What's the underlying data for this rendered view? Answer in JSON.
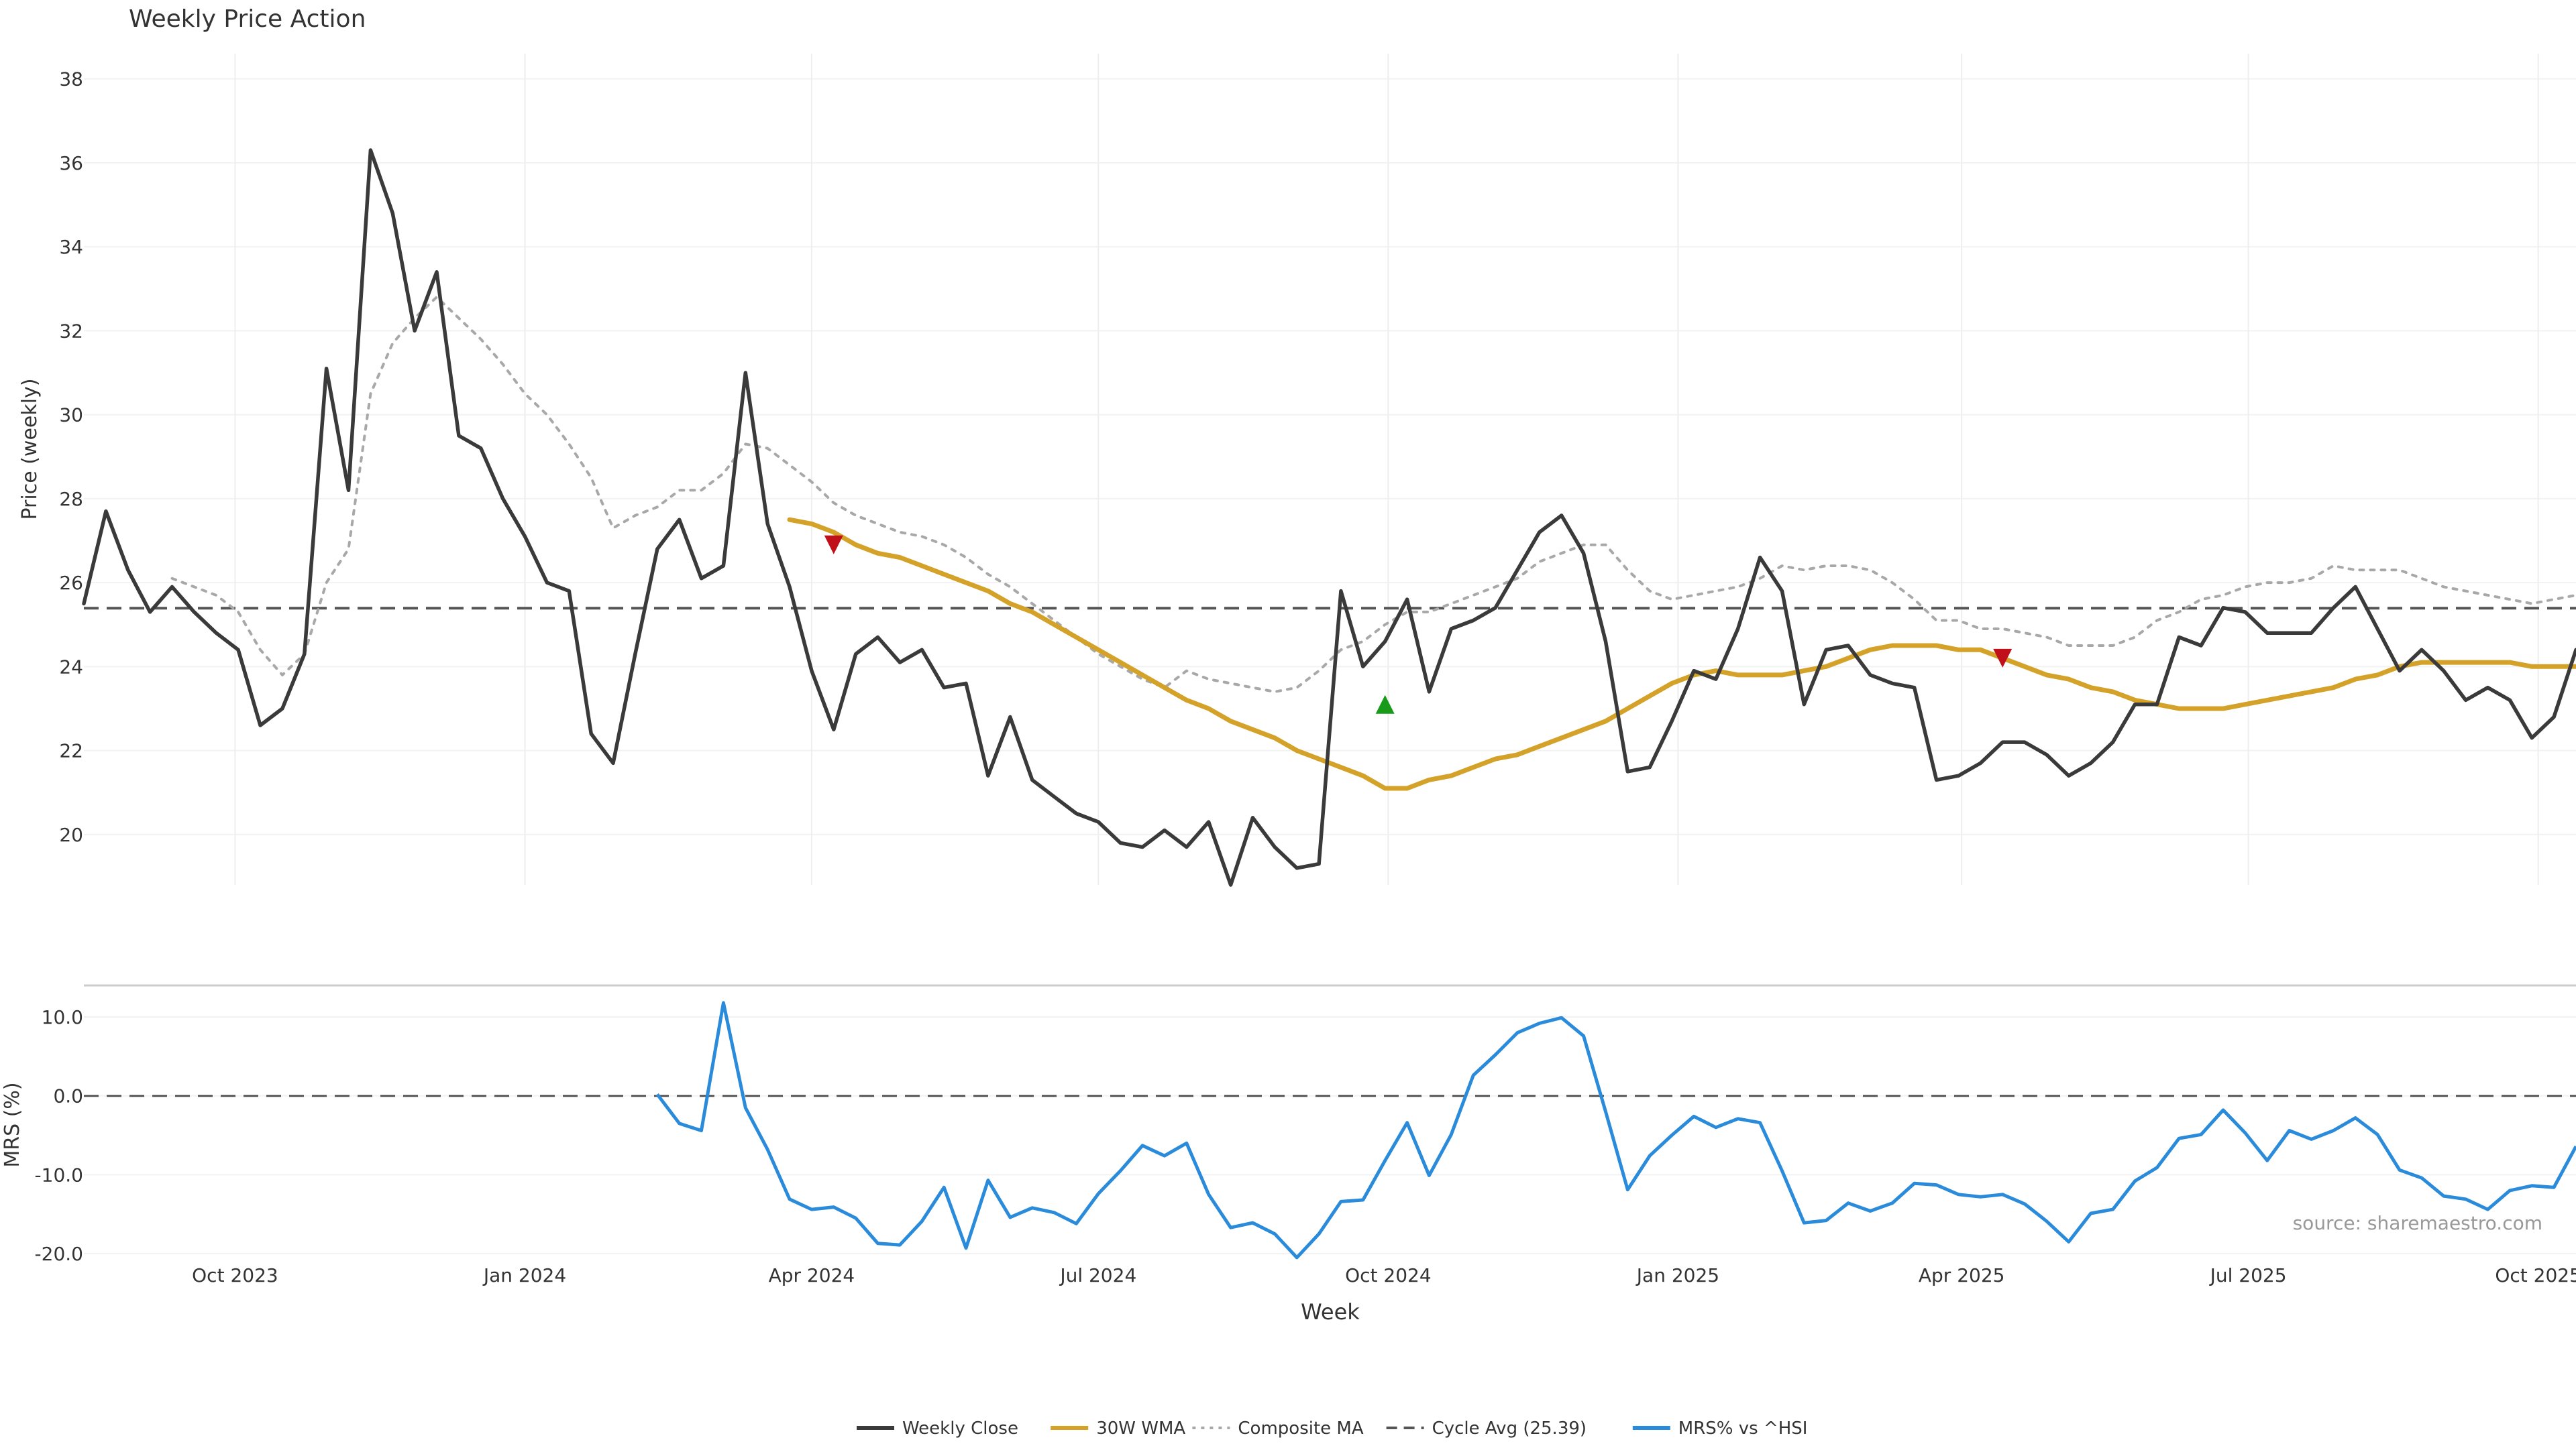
{
  "chart_data": [
    {
      "type": "line",
      "panel": "price",
      "title": "Weekly Price Action",
      "ylabel": "Price (weekly)",
      "ylim": [
        18.8,
        38.6
      ],
      "yticks": [
        20,
        22,
        24,
        26,
        28,
        30,
        32,
        34,
        36,
        38
      ],
      "x_start": "2023-08-14",
      "x_step_days": 7,
      "series": [
        {
          "name": "Weekly Close",
          "color": "#3a3a3a",
          "values": [
            25.5,
            27.7,
            26.3,
            25.3,
            25.9,
            25.3,
            24.8,
            24.4,
            22.6,
            23.0,
            24.3,
            31.1,
            28.2,
            36.3,
            34.8,
            32.0,
            33.4,
            29.5,
            29.2,
            28.0,
            27.1,
            26.0,
            25.8,
            22.4,
            21.7,
            24.3,
            26.8,
            27.5,
            26.1,
            26.4,
            31.0,
            27.4,
            25.9,
            23.9,
            22.5,
            24.3,
            24.7,
            24.1,
            24.4,
            23.5,
            23.6,
            21.4,
            22.8,
            21.3,
            20.9,
            20.5,
            20.3,
            19.8,
            19.7,
            20.1,
            19.7,
            20.3,
            18.8,
            20.4,
            19.7,
            19.2,
            19.3,
            25.8,
            24.0,
            24.6,
            25.6,
            23.4,
            24.9,
            25.1,
            25.4,
            26.3,
            27.2,
            27.6,
            26.7,
            24.6,
            21.5,
            21.6,
            22.7,
            23.9,
            23.7,
            24.9,
            26.6,
            25.8,
            23.1,
            24.4,
            24.5,
            23.8,
            23.6,
            23.5,
            21.3,
            21.4,
            21.7,
            22.2,
            22.2,
            21.9,
            21.4,
            21.7,
            22.2,
            23.1,
            23.1,
            24.7,
            24.5,
            25.4,
            25.3,
            24.8,
            24.8,
            24.8,
            25.4,
            25.9,
            24.9,
            23.9,
            24.4,
            23.9,
            23.2,
            23.5,
            23.2,
            22.3,
            22.8,
            24.4
          ]
        },
        {
          "name": "30W WMA",
          "color": "#d4a228",
          "values": [
            null,
            null,
            null,
            null,
            null,
            null,
            null,
            null,
            null,
            null,
            null,
            null,
            null,
            null,
            null,
            null,
            null,
            null,
            null,
            null,
            null,
            null,
            null,
            null,
            null,
            null,
            null,
            null,
            null,
            null,
            null,
            null,
            27.5,
            27.4,
            27.2,
            26.9,
            26.7,
            26.6,
            26.4,
            26.2,
            26.0,
            25.8,
            25.5,
            25.3,
            25.0,
            24.7,
            24.4,
            24.1,
            23.8,
            23.5,
            23.2,
            23.0,
            22.7,
            22.5,
            22.3,
            22.0,
            21.8,
            21.6,
            21.4,
            21.1,
            21.1,
            21.3,
            21.4,
            21.6,
            21.8,
            21.9,
            22.1,
            22.3,
            22.5,
            22.7,
            23.0,
            23.3,
            23.6,
            23.8,
            23.9,
            23.8,
            23.8,
            23.8,
            23.9,
            24.0,
            24.2,
            24.4,
            24.5,
            24.5,
            24.5,
            24.4,
            24.4,
            24.2,
            24.0,
            23.8,
            23.7,
            23.5,
            23.4,
            23.2,
            23.1,
            23.0,
            23.0,
            23.0,
            23.1,
            23.2,
            23.3,
            23.4,
            23.5,
            23.7,
            23.8,
            24.0,
            24.1,
            24.1,
            24.1,
            24.1,
            24.1,
            24.0,
            24.0,
            24.0
          ]
        },
        {
          "name": "Composite MA",
          "color": "#a8a8a8",
          "dash": "dotted",
          "values": [
            null,
            null,
            null,
            null,
            26.1,
            25.9,
            25.7,
            25.3,
            24.4,
            23.8,
            24.3,
            26.0,
            26.8,
            30.5,
            31.7,
            32.3,
            32.8,
            32.3,
            31.8,
            31.2,
            30.5,
            30.0,
            29.3,
            28.5,
            27.3,
            27.6,
            27.8,
            28.2,
            28.2,
            28.6,
            29.3,
            29.2,
            28.8,
            28.4,
            27.9,
            27.6,
            27.4,
            27.2,
            27.1,
            26.9,
            26.6,
            26.2,
            25.9,
            25.5,
            25.1,
            24.7,
            24.3,
            24.0,
            23.7,
            23.5,
            23.9,
            23.7,
            23.6,
            23.5,
            23.4,
            23.5,
            23.9,
            24.4,
            24.6,
            25.0,
            25.3,
            25.3,
            25.5,
            25.7,
            25.9,
            26.1,
            26.5,
            26.7,
            26.9,
            26.9,
            26.3,
            25.8,
            25.6,
            25.7,
            25.8,
            25.9,
            26.1,
            26.4,
            26.3,
            26.4,
            26.4,
            26.3,
            26.0,
            25.6,
            25.1,
            25.1,
            24.9,
            24.9,
            24.8,
            24.7,
            24.5,
            24.5,
            24.5,
            24.7,
            25.1,
            25.3,
            25.6,
            25.7,
            25.9,
            26.0,
            26.0,
            26.1,
            26.4,
            26.3,
            26.3,
            26.3,
            26.1,
            25.9,
            25.8,
            25.7,
            25.6,
            25.5,
            25.6,
            25.7
          ]
        },
        {
          "name": "Cycle Avg (25.39)",
          "color": "#555555",
          "dash": "dashed",
          "constant": 25.39
        }
      ],
      "markers": [
        {
          "type": "sell",
          "shape": "triangle-down",
          "color": "#c0101a",
          "x_index": 34,
          "y": 26.9
        },
        {
          "type": "buy",
          "shape": "triangle-up",
          "color": "#1a9a1a",
          "x_index": 59,
          "y": 23.1
        },
        {
          "type": "sell",
          "shape": "triangle-down",
          "color": "#c0101a",
          "x_index": 87,
          "y": 24.2
        }
      ]
    },
    {
      "type": "line",
      "panel": "mrs",
      "ylabel": "MRS (%)",
      "xlabel": "Week",
      "ylim": [
        -20.0,
        14.0
      ],
      "yticks": [
        10.0,
        0.0,
        -10.0,
        -20.0
      ],
      "ytick_labels": [
        "10.0",
        "0.0",
        "-10.0",
        "-20.0"
      ],
      "zero_line": true,
      "series": [
        {
          "name": "MRS% vs ^HSI",
          "color": "#2a8bdb",
          "values": [
            null,
            null,
            null,
            null,
            null,
            null,
            null,
            null,
            null,
            null,
            null,
            null,
            null,
            null,
            null,
            null,
            null,
            null,
            null,
            null,
            null,
            null,
            null,
            null,
            null,
            null,
            0.2,
            -3.5,
            -4.4,
            11.8,
            -1.5,
            -6.8,
            -13.1,
            -14.4,
            -14.1,
            -15.5,
            -18.7,
            -18.9,
            -15.9,
            -11.6,
            -19.3,
            -10.7,
            -15.4,
            -14.2,
            -14.8,
            -16.2,
            -12.4,
            -9.5,
            -6.3,
            -7.6,
            -6.0,
            -12.5,
            -16.7,
            -16.1,
            -17.5,
            -20.5,
            -17.5,
            -13.4,
            -13.2,
            -8.2,
            -3.4,
            -10.1,
            -4.9,
            2.6,
            5.2,
            8.0,
            9.2,
            9.9,
            7.6,
            -2.0,
            -11.9,
            -7.6,
            -5.0,
            -2.6,
            -4.0,
            -2.9,
            -3.4,
            -9.5,
            -16.1,
            -15.8,
            -13.6,
            -14.6,
            -13.6,
            -11.1,
            -11.3,
            -12.5,
            -12.8,
            -12.5,
            -13.7,
            -15.9,
            -18.5,
            -14.9,
            -14.4,
            -10.8,
            -9.1,
            -5.4,
            -4.9,
            -1.8,
            -4.7,
            -8.2,
            -4.4,
            -5.5,
            -4.4,
            -2.8,
            -4.9,
            -9.4,
            -10.4,
            -12.7,
            -13.1,
            -14.4,
            -12.0,
            -11.4,
            -11.6,
            -6.4
          ]
        }
      ],
      "source": "source: sharemaestro.com"
    }
  ],
  "x_axis": {
    "label": "Week",
    "ticks": [
      {
        "label": "Oct 2023",
        "date": "2023-10-01"
      },
      {
        "label": "Jan 2024",
        "date": "2024-01-01"
      },
      {
        "label": "Apr 2024",
        "date": "2024-04-01"
      },
      {
        "label": "Jul 2024",
        "date": "2024-07-01"
      },
      {
        "label": "Oct 2024",
        "date": "2024-10-01"
      },
      {
        "label": "Jan 2025",
        "date": "2025-01-01"
      },
      {
        "label": "Apr 2025",
        "date": "2025-04-01"
      },
      {
        "label": "Jul 2025",
        "date": "2025-07-01"
      },
      {
        "label": "Oct 2025",
        "date": "2025-10-01"
      }
    ]
  },
  "legend": {
    "placement": "bottom-center",
    "items": [
      {
        "label": "Weekly Close",
        "color": "#3a3a3a",
        "style": "solid"
      },
      {
        "label": "30W WMA",
        "color": "#d4a228",
        "style": "solid"
      },
      {
        "label": "Composite MA",
        "color": "#a8a8a8",
        "style": "dotted"
      },
      {
        "label": "Cycle Avg (25.39)",
        "color": "#555555",
        "style": "dashed"
      },
      {
        "label": "MRS% vs ^HSI",
        "color": "#2a8bdb",
        "style": "solid"
      }
    ]
  }
}
